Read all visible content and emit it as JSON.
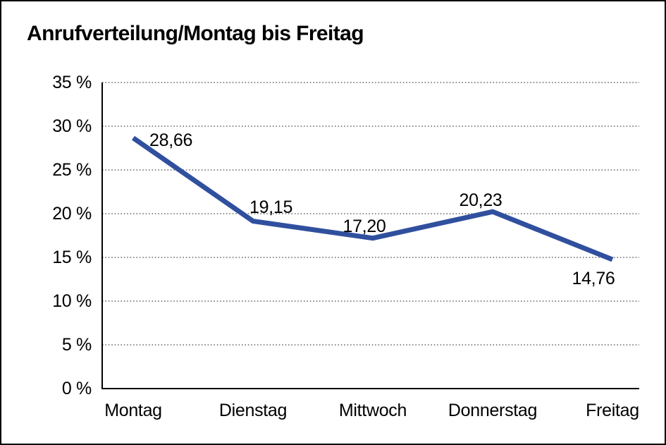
{
  "window": {
    "background_color": "#ffffff",
    "border_color": "#000000"
  },
  "chart_data": {
    "type": "line",
    "title": "Anrufverteilung/Montag bis Freitag",
    "categories": [
      "Montag",
      "Dienstag",
      "Mittwoch",
      "Donnerstag",
      "Freitag"
    ],
    "series": [
      {
        "name": "Anrufverteilung",
        "values": [
          28.66,
          19.15,
          17.2,
          20.23,
          14.76
        ]
      }
    ],
    "point_labels": [
      "28,66",
      "19,15",
      "17,20",
      "20,23",
      "14,76"
    ],
    "y_ticks": [
      {
        "value": 35,
        "label": "35 %"
      },
      {
        "value": 30,
        "label": "30 %"
      },
      {
        "value": 25,
        "label": "25 %"
      },
      {
        "value": 20,
        "label": "20 %"
      },
      {
        "value": 15,
        "label": "15 %"
      },
      {
        "value": 10,
        "label": "10 %"
      },
      {
        "value": 5,
        "label": "5 %"
      },
      {
        "value": 0,
        "label": "0 %"
      }
    ],
    "ylim": [
      0,
      35
    ],
    "xlabel": "",
    "ylabel": "",
    "grid": "horizontal-dotted",
    "legend": "none",
    "line_color": "#30509E",
    "axis_color": "#000000",
    "grid_color": "#4a4a4a"
  }
}
